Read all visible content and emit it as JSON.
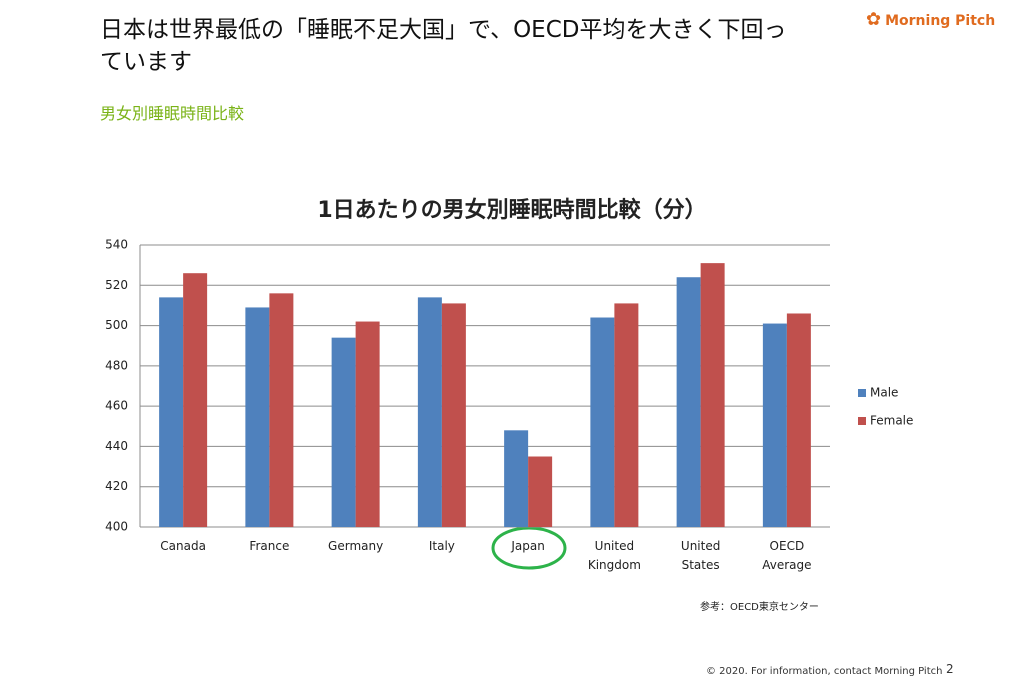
{
  "slide": {
    "headline": "日本は世界最低の「睡眠不足大国」で、OECD平均を大きく下回っています",
    "subtitle": "男女別睡眠時間比較",
    "logo": "Morning Pitch",
    "source": "参考：OECD東京センター",
    "footer": "© 2020. For information,  contact Morning Pitch",
    "page": "2"
  },
  "chart_data": {
    "type": "bar",
    "title": "1日あたりの男女別睡眠時間比較（分）",
    "categories": [
      "Canada",
      "France",
      "Germany",
      "Italy",
      "Japan",
      "United Kingdom",
      "United States",
      "OECD Average"
    ],
    "series": [
      {
        "name": "Male",
        "color": "#4f81bd",
        "values": [
          514,
          509,
          494,
          514,
          448,
          504,
          524,
          501
        ]
      },
      {
        "name": "Female",
        "color": "#c0504d",
        "values": [
          526,
          516,
          502,
          511,
          435,
          511,
          531,
          506
        ]
      }
    ],
    "ylim": [
      400,
      540
    ],
    "yticks": [
      400,
      420,
      440,
      460,
      480,
      500,
      520,
      540
    ],
    "grid": true,
    "legend": "right"
  }
}
